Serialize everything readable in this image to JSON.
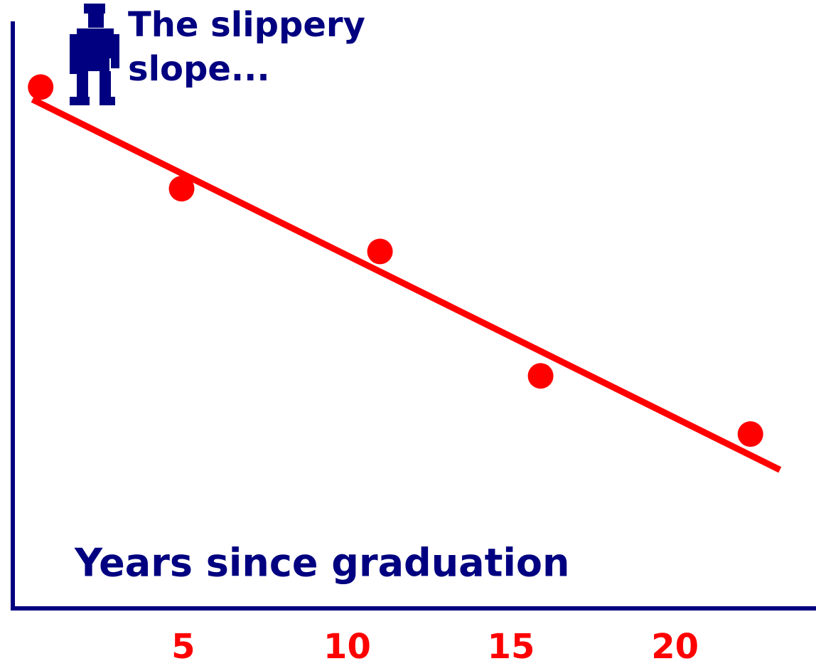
{
  "chart_data": {
    "type": "scatter",
    "title_lines": [
      "The slippery",
      "slope..."
    ],
    "xlabel": "Years since graduation",
    "x": [
      0.65,
      4.95,
      11.0,
      15.9,
      22.3
    ],
    "values": [
      88.8,
      71.5,
      60.8,
      39.6,
      29.7
    ],
    "color": "#ff0000",
    "trend": {
      "x": [
        0.4,
        23.2
      ],
      "values": [
        86.7,
        23.6
      ],
      "color": "#ff0000"
    },
    "xlim": [
      -0.2,
      24.3
    ],
    "ylim": [
      0,
      100
    ],
    "xticks": [
      5,
      10,
      15,
      20
    ],
    "tick_color": "#ff0000",
    "text_color": "#000080",
    "axis_color": "#000080",
    "grid": false
  }
}
